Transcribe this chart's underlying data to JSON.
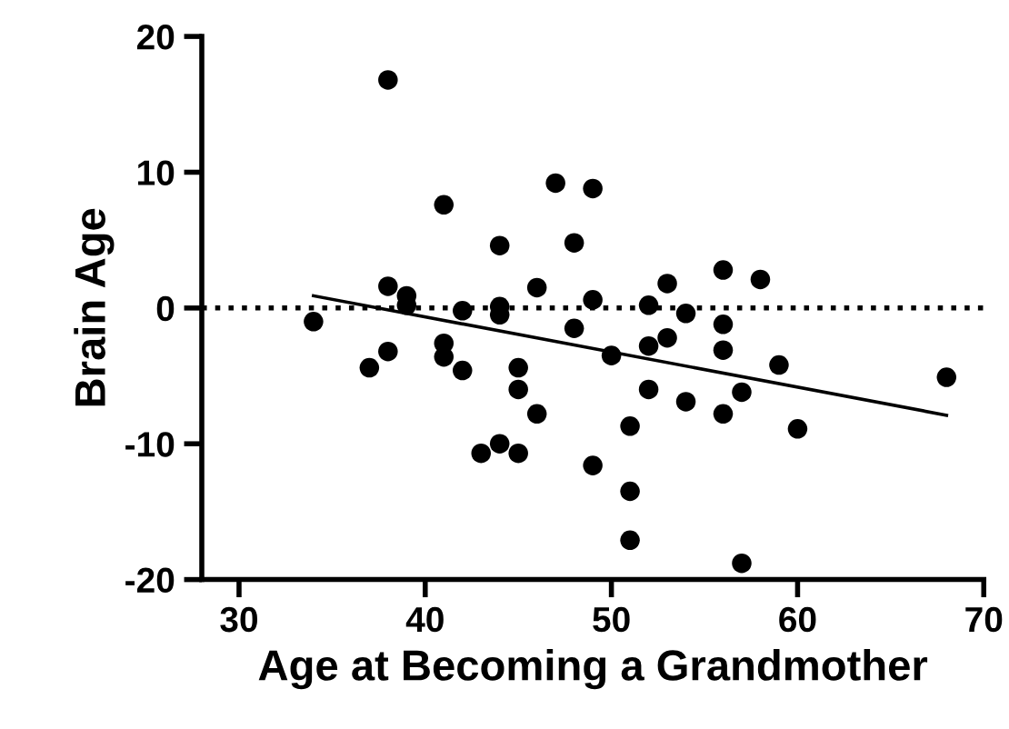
{
  "chart_data": {
    "type": "scatter",
    "xlabel": "Age at Becoming a Grandmother",
    "ylabel": "Brain Age",
    "xlim": [
      28,
      70
    ],
    "ylim": [
      -20,
      20
    ],
    "xticks": [
      30,
      40,
      50,
      60,
      70
    ],
    "yticks": [
      -20,
      -10,
      0,
      10,
      20
    ],
    "grid": false,
    "legend": false,
    "marker": "circle",
    "series": [
      {
        "color": "#000000",
        "x": [
          34,
          37,
          38,
          38,
          38,
          39,
          39,
          41,
          41,
          41,
          42,
          42,
          43,
          44,
          44,
          44,
          44,
          45,
          45,
          45,
          46,
          46,
          47,
          48,
          48,
          49,
          49,
          49,
          50,
          51,
          51,
          51,
          52,
          52,
          52,
          53,
          53,
          54,
          54,
          56,
          56,
          56,
          56,
          57,
          57,
          58,
          59,
          60,
          68
        ],
        "values": [
          -1.0,
          -4.4,
          16.8,
          1.6,
          -3.2,
          0.9,
          0.2,
          7.6,
          -2.6,
          -3.6,
          -0.2,
          -4.6,
          -10.7,
          4.6,
          0.1,
          -0.5,
          -10.0,
          -4.4,
          -6.0,
          -10.7,
          1.5,
          -7.8,
          9.2,
          4.8,
          -1.5,
          8.8,
          0.6,
          -11.6,
          -3.5,
          -8.7,
          -13.5,
          -17.1,
          0.2,
          -2.8,
          -6.0,
          1.8,
          -2.2,
          -0.4,
          -6.9,
          2.8,
          -1.2,
          -3.1,
          -7.8,
          -6.2,
          -18.8,
          2.1,
          -4.2,
          -8.9,
          -5.1
        ]
      },
      {
        "type": "line",
        "color": "#000000",
        "x": [
          34,
          68
        ],
        "values": [
          0.9,
          -7.9
        ],
        "marker": "none",
        "line_style": "solid"
      }
    ],
    "ref_lines": [
      {
        "axis": "y",
        "value": 0,
        "color": "#000000",
        "line_style": "dotted"
      }
    ]
  }
}
